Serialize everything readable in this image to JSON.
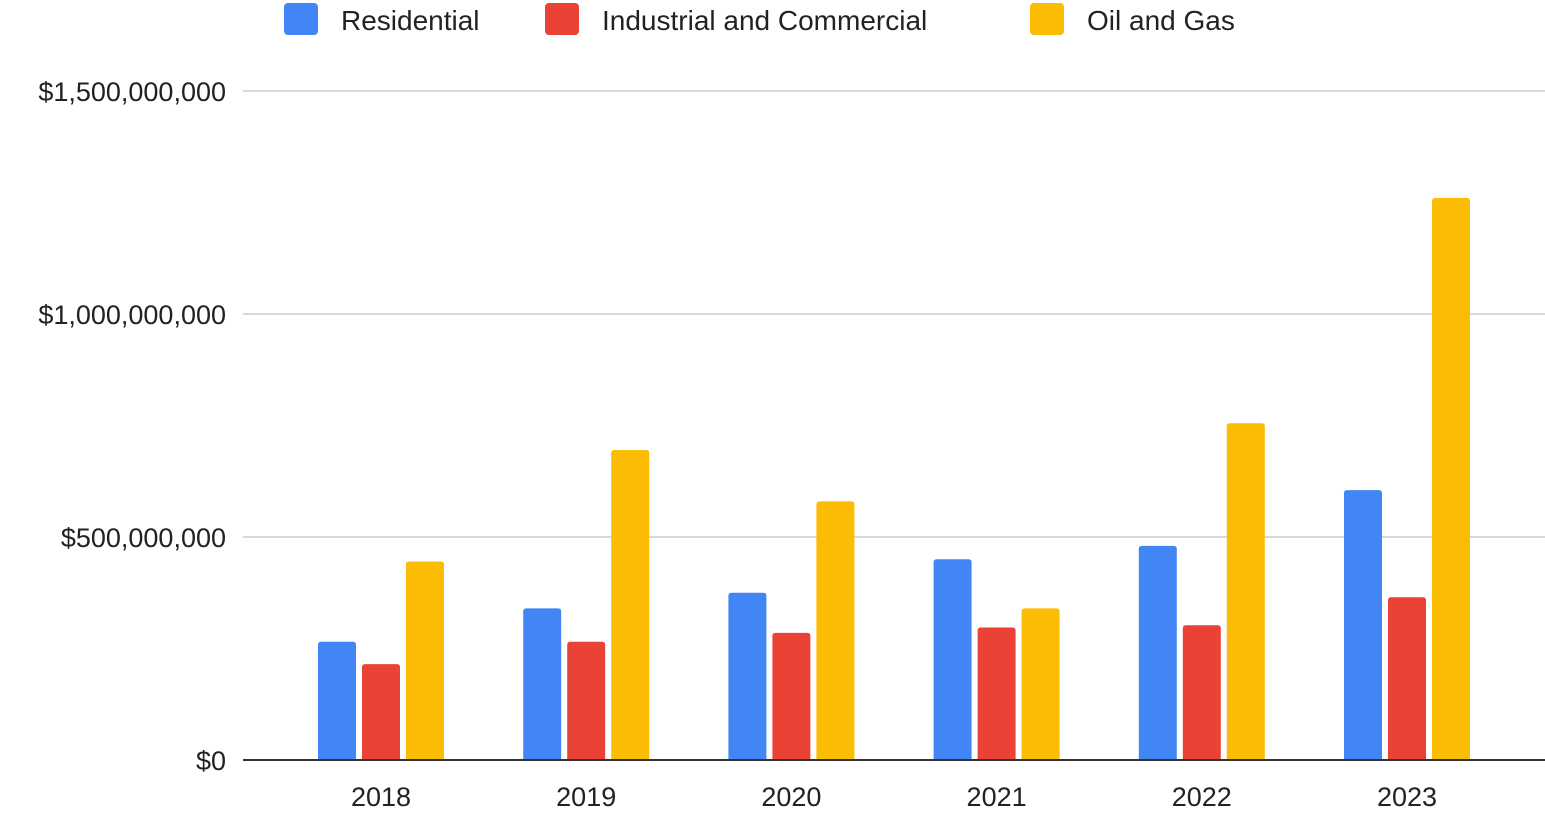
{
  "chart_data": {
    "type": "bar",
    "title": "",
    "xlabel": "",
    "ylabel": "",
    "categories": [
      "2018",
      "2019",
      "2020",
      "2021",
      "2022",
      "2023"
    ],
    "series": [
      {
        "name": "Residential",
        "color": "#4285F4",
        "values": [
          265000000,
          340000000,
          375000000,
          450000000,
          480000000,
          605000000
        ]
      },
      {
        "name": "Industrial and Commercial",
        "color": "#EA4335",
        "values": [
          215000000,
          265000000,
          285000000,
          297000000,
          302000000,
          365000000
        ]
      },
      {
        "name": "Oil and Gas",
        "color": "#FBBC04",
        "values": [
          445000000,
          695000000,
          580000000,
          340000000,
          755000000,
          1260000000
        ]
      }
    ],
    "ylim": [
      0,
      1500000000
    ],
    "yticks": [
      {
        "value": 0,
        "label": "$0"
      },
      {
        "value": 500000000,
        "label": "$500,000,000"
      },
      {
        "value": 1000000000,
        "label": "$1,000,000,000"
      },
      {
        "value": 1500000000,
        "label": "$1,500,000,000"
      }
    ],
    "grid": true,
    "legend": "top-left"
  }
}
